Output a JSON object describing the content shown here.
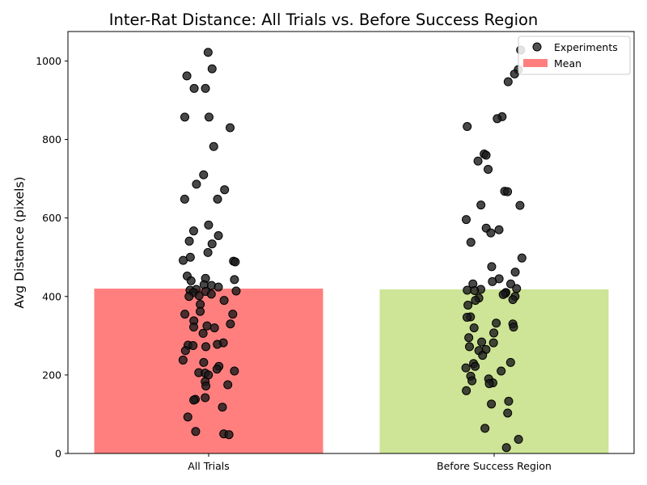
{
  "chart_data": {
    "type": "bar",
    "title": "Inter-Rat Distance: All Trials vs. Before Success Region",
    "xlabel": "",
    "ylabel": "Avg Distance (pixels)",
    "categories": [
      "All Trials",
      "Before Success Region"
    ],
    "bar_values": [
      420,
      418
    ],
    "bar_colors": [
      "#ff7f7f",
      "#cee496"
    ],
    "point_color": "#1a1a1a",
    "ylim": [
      0,
      1075
    ],
    "yticks": [
      0,
      200,
      400,
      600,
      800,
      1000
    ],
    "legend": {
      "placement": "top-right",
      "entries": [
        {
          "label": "Experiments",
          "marker": "circle",
          "color": "#333333"
        },
        {
          "label": "Mean",
          "marker": "rect",
          "color": "#ff7f7f"
        }
      ]
    },
    "points": [
      {
        "category": "All Trials",
        "values": [
          1022,
          980,
          962,
          930,
          930,
          857,
          857,
          830,
          782,
          710,
          686,
          672,
          648,
          648,
          582,
          567,
          555,
          541,
          534,
          512,
          500,
          492,
          490,
          488,
          452,
          446,
          443,
          440,
          430,
          428,
          424,
          418,
          416,
          414,
          413,
          410,
          406,
          402,
          400,
          390,
          380,
          362,
          355,
          355,
          338,
          330,
          325,
          322,
          320,
          306,
          282,
          278,
          276,
          275,
          272,
          262,
          238,
          232,
          222,
          215,
          210,
          206,
          205,
          200,
          183,
          175,
          172,
          142,
          138,
          136,
          118,
          93,
          56,
          50,
          48
        ]
      },
      {
        "category": "Before Success Region",
        "values": [
          1028,
          978,
          967,
          947,
          858,
          853,
          833,
          763,
          760,
          745,
          724,
          668,
          667,
          633,
          632,
          596,
          574,
          570,
          562,
          538,
          498,
          476,
          462,
          445,
          438,
          432,
          432,
          420,
          418,
          416,
          415,
          410,
          408,
          405,
          400,
          396,
          392,
          390,
          378,
          348,
          347,
          332,
          330,
          322,
          320,
          307,
          295,
          284,
          282,
          272,
          265,
          262,
          250,
          232,
          229,
          222,
          218,
          210,
          197,
          190,
          185,
          180,
          178,
          160,
          133,
          126,
          103,
          64,
          36,
          15
        ]
      }
    ]
  }
}
